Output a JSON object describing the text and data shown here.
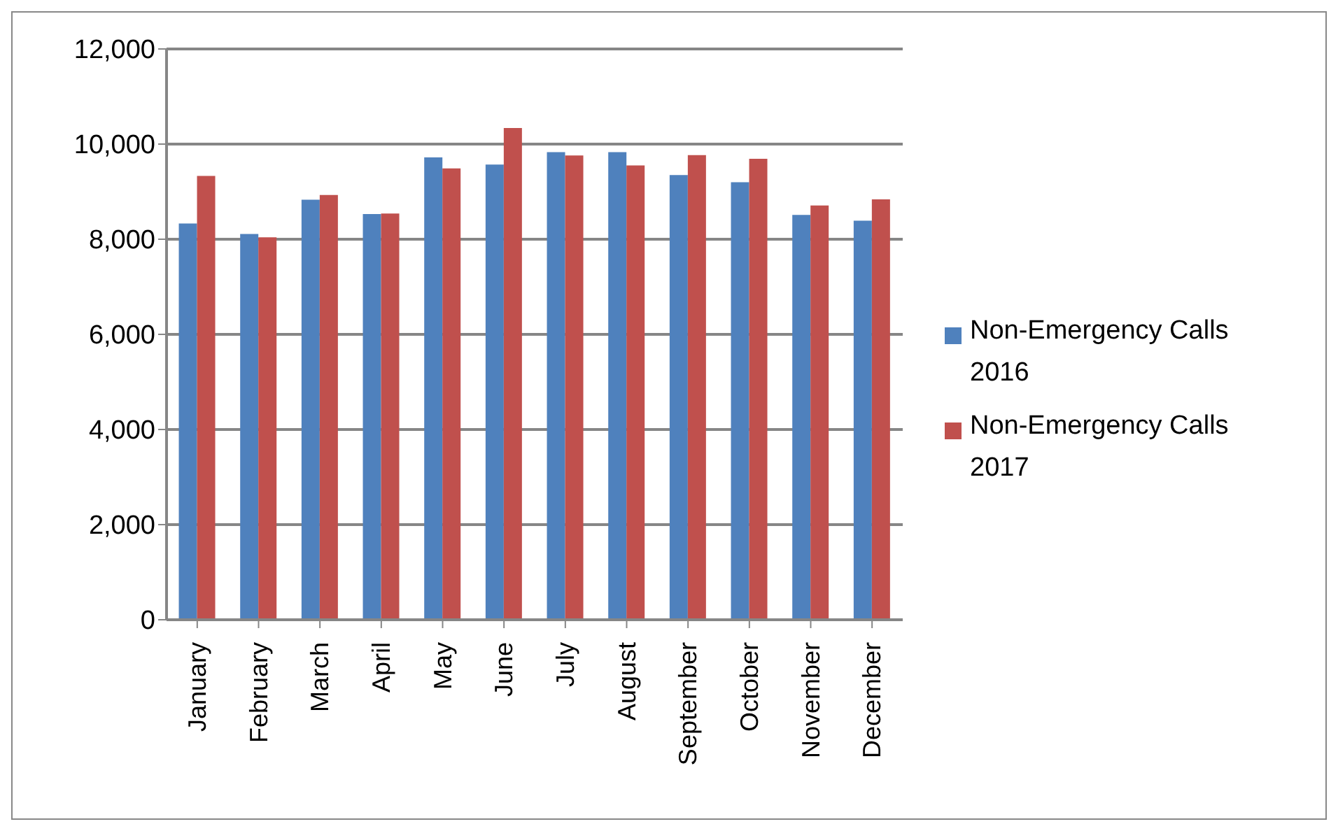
{
  "chart_data": {
    "type": "bar",
    "categories": [
      "January",
      "February",
      "March",
      "April",
      "May",
      "June",
      "July",
      "August",
      "September",
      "October",
      "November",
      "December"
    ],
    "series": [
      {
        "name": "Non-Emergency Calls 2016",
        "color": "#4f81bd",
        "values": [
          8330,
          8110,
          8830,
          8530,
          9720,
          9570,
          9830,
          9830,
          9350,
          9200,
          8510,
          8390
        ]
      },
      {
        "name": "Non-Emergency Calls 2017",
        "color": "#c0504d",
        "values": [
          9330,
          8040,
          8930,
          8540,
          9490,
          10340,
          9760,
          9550,
          9770,
          9690,
          8710,
          8840
        ]
      }
    ],
    "ylim": [
      0,
      12000
    ],
    "yticks": [
      0,
      {
        "value": 2000,
        "label": "2,000"
      },
      {
        "value": 4000,
        "label": "4,000"
      },
      {
        "value": 6000,
        "label": "6,000"
      },
      {
        "value": 8000,
        "label": "8,000"
      },
      {
        "value": 10000,
        "label": "10,000"
      },
      {
        "value": 12000,
        "label": "12,000"
      }
    ],
    "grid": "y",
    "legend": "right"
  }
}
